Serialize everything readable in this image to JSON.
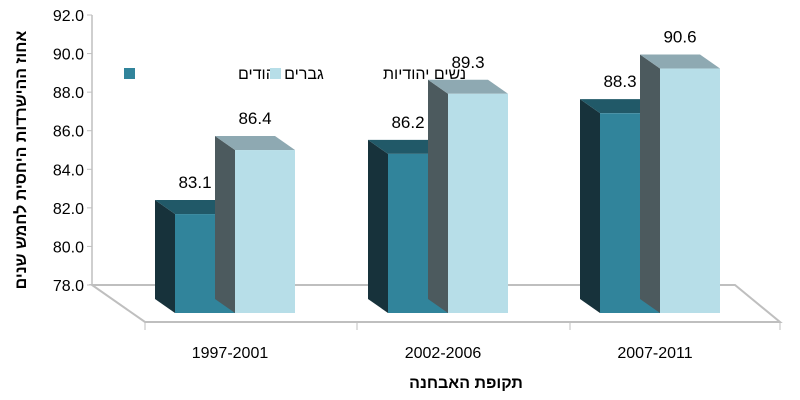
{
  "chart_data": {
    "type": "bar",
    "style": "3d-clustered-column",
    "categories": [
      "1997-2001",
      "2002-2006",
      "2007-2011"
    ],
    "series": [
      {
        "name": "גברים יהודים",
        "values": [
          83.1,
          86.2,
          88.3
        ],
        "color": "#31849B",
        "top_color": "#215968",
        "side_color": "#17323B"
      },
      {
        "name": "נשים יהודיות",
        "values": [
          86.4,
          89.3,
          90.6
        ],
        "color": "#B7DEE8",
        "top_color": "#8EA9B2",
        "side_color": "#4C5A5E"
      }
    ],
    "xlabel": "תקופת האבחנה",
    "ylabel": "אחוז ההישרדות היחסית לחמש שנים",
    "ylim": [
      78.0,
      92.0
    ],
    "yticks": [
      "78.0",
      "80.0",
      "82.0",
      "84.0",
      "86.0",
      "88.0",
      "90.0",
      "92.0"
    ],
    "data_labels": [
      [
        "83.1",
        "86.2",
        "88.3"
      ],
      [
        "86.4",
        "89.3",
        "90.6"
      ]
    ],
    "legend_position": "top-left",
    "grid": false
  }
}
